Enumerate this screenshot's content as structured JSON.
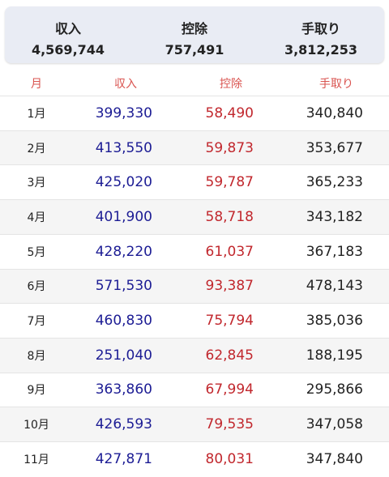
{
  "summary": [
    {
      "label": "収入",
      "value": "4,569,744"
    },
    {
      "label": "控除",
      "value": "757,491"
    },
    {
      "label": "手取り",
      "value": "3,812,253"
    }
  ],
  "table": {
    "headers": [
      "月",
      "収入",
      "控除",
      "手取り"
    ],
    "rows": [
      [
        "1月",
        "399,330",
        "58,490",
        "340,840"
      ],
      [
        "2月",
        "413,550",
        "59,873",
        "353,677"
      ],
      [
        "3月",
        "425,020",
        "59,787",
        "365,233"
      ],
      [
        "4月",
        "401,900",
        "58,718",
        "343,182"
      ],
      [
        "5月",
        "428,220",
        "61,037",
        "367,183"
      ],
      [
        "6月",
        "571,530",
        "93,387",
        "478,143"
      ],
      [
        "7月",
        "460,830",
        "75,794",
        "385,036"
      ],
      [
        "8月",
        "251,040",
        "62,845",
        "188,195"
      ],
      [
        "9月",
        "363,860",
        "67,994",
        "295,866"
      ],
      [
        "10月",
        "426,593",
        "79,535",
        "347,058"
      ],
      [
        "11月",
        "427,871",
        "80,031",
        "347,840"
      ]
    ]
  }
}
